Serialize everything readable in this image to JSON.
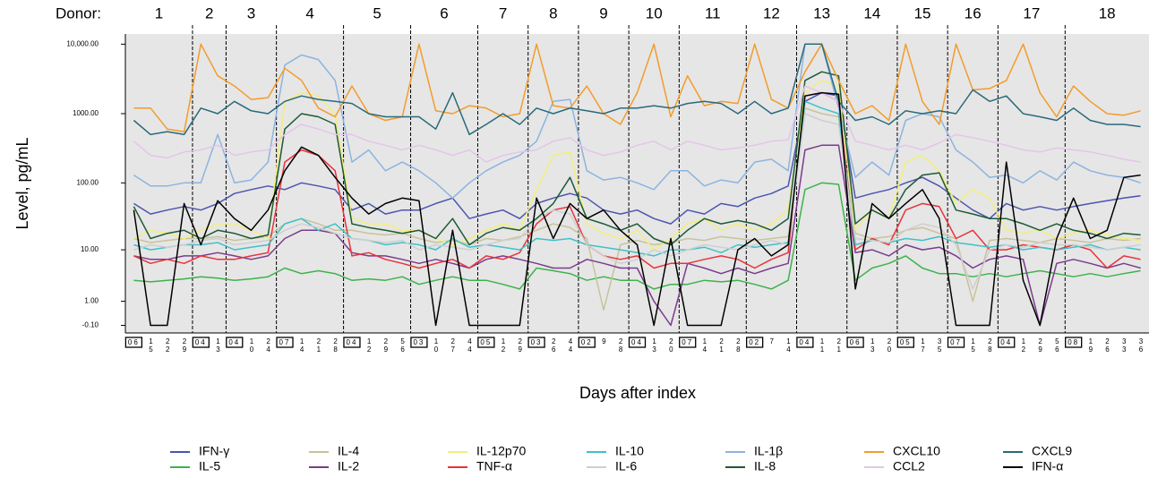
{
  "chart_data": {
    "type": "line",
    "group_label": "Donor:",
    "y_label": "Level, pg/mL",
    "x_label": "Days after index",
    "yscale": "log",
    "ylim": [
      -0.3,
      14000
    ],
    "yticks": [
      {
        "value": -0.1,
        "label": "-0.10"
      },
      {
        "value": 1,
        "label": "1.00"
      },
      {
        "value": 10,
        "label": "10.00"
      },
      {
        "value": 100,
        "label": "100.00"
      },
      {
        "value": 1000,
        "label": "1000.00"
      },
      {
        "value": 10000,
        "label": "10,000.00"
      }
    ],
    "groups": [
      {
        "label": "1",
        "categories": [
          "06",
          "15",
          "22",
          "29"
        ]
      },
      {
        "label": "2",
        "categories": [
          "04",
          "13"
        ]
      },
      {
        "label": "3",
        "categories": [
          "04",
          "10",
          "24"
        ]
      },
      {
        "label": "4",
        "categories": [
          "07",
          "14",
          "21",
          "28"
        ]
      },
      {
        "label": "5",
        "categories": [
          "04",
          "12",
          "29",
          "56"
        ]
      },
      {
        "label": "6",
        "categories": [
          "03",
          "10",
          "27",
          "44"
        ]
      },
      {
        "label": "7",
        "categories": [
          "05",
          "12",
          "29"
        ]
      },
      {
        "label": "8",
        "categories": [
          "03",
          "26",
          "44"
        ]
      },
      {
        "label": "9",
        "categories": [
          "02",
          "9",
          "28"
        ]
      },
      {
        "label": "10",
        "categories": [
          "04",
          "13",
          "20"
        ]
      },
      {
        "label": "11",
        "categories": [
          "07",
          "14",
          "21",
          "28"
        ]
      },
      {
        "label": "12",
        "categories": [
          "02",
          "7",
          "14"
        ]
      },
      {
        "label": "13",
        "categories": [
          "04",
          "11",
          "21"
        ]
      },
      {
        "label": "14",
        "categories": [
          "06",
          "13",
          "20"
        ]
      },
      {
        "label": "15",
        "categories": [
          "05",
          "17",
          "35"
        ]
      },
      {
        "label": "16",
        "categories": [
          "07",
          "15",
          "28"
        ]
      },
      {
        "label": "17",
        "categories": [
          "04",
          "12",
          "29",
          "56"
        ]
      },
      {
        "label": "18",
        "categories": [
          "08",
          "19",
          "26",
          "33",
          "36"
        ]
      }
    ],
    "series": [
      {
        "name": "IFN-γ",
        "color": "#4a55b0",
        "values": [
          50,
          35,
          40,
          45,
          40,
          50,
          70,
          80,
          90,
          80,
          100,
          90,
          80,
          40,
          50,
          35,
          40,
          40,
          50,
          60,
          30,
          35,
          40,
          30,
          50,
          60,
          70,
          60,
          40,
          35,
          40,
          30,
          25,
          40,
          35,
          50,
          45,
          60,
          70,
          90,
          1500,
          2000,
          1800,
          60,
          70,
          80,
          100,
          120,
          90,
          60,
          40,
          30,
          50,
          40,
          45,
          40,
          45,
          50,
          55,
          60,
          65
        ]
      },
      {
        "name": "IL-5",
        "color": "#3cb34a",
        "values": [
          3,
          2.8,
          3,
          3.2,
          3.5,
          3.3,
          3,
          3.2,
          3.5,
          5,
          4,
          4.5,
          4,
          3,
          3.2,
          3,
          3.5,
          2.5,
          3,
          3.5,
          3,
          3,
          2.5,
          2,
          5,
          4.5,
          4,
          3,
          3.5,
          3,
          3,
          2,
          2.5,
          2.5,
          3,
          2.8,
          3,
          2.5,
          2,
          3,
          80,
          100,
          95,
          3,
          5,
          6,
          8,
          5,
          4,
          4,
          3.5,
          4,
          3.5,
          4,
          4.5,
          4,
          3.5,
          4,
          3.5,
          4,
          4.5
        ]
      },
      {
        "name": "IL-4",
        "color": "#c8c39a",
        "values": [
          15,
          13,
          14,
          15,
          15,
          16,
          14,
          15,
          16,
          25,
          30,
          25,
          20,
          20,
          18,
          17,
          18,
          15,
          13,
          14,
          12,
          15,
          14,
          16,
          20,
          25,
          22,
          15,
          0.5,
          12,
          14,
          12,
          13,
          15,
          14,
          16,
          15,
          14,
          15,
          16,
          1200,
          1000,
          900,
          18,
          15,
          16,
          20,
          22,
          18,
          15,
          1,
          14,
          15,
          14,
          13,
          15,
          14,
          13,
          15,
          14,
          15
        ]
      },
      {
        "name": "IL-2",
        "color": "#7b3b8c",
        "values": [
          8,
          7,
          7,
          8,
          8,
          9,
          8,
          7,
          8,
          15,
          20,
          20,
          18,
          9,
          8,
          8,
          7,
          6,
          7,
          6,
          5,
          7,
          8,
          7,
          6,
          5,
          5,
          7,
          6,
          5,
          5,
          1,
          -0.1,
          6,
          5,
          4,
          5,
          4,
          5,
          6,
          300,
          350,
          350,
          9,
          10,
          8,
          12,
          10,
          11,
          8,
          5,
          7,
          8,
          7,
          -0.1,
          6,
          7,
          6,
          5,
          6,
          5
        ]
      },
      {
        "name": "IL-12p70",
        "color": "#f2ef7a",
        "values": [
          15,
          20,
          18,
          15,
          20,
          25,
          25,
          20,
          15,
          1500,
          2000,
          1800,
          1000,
          30,
          25,
          25,
          20,
          20,
          15,
          12,
          15,
          20,
          25,
          20,
          80,
          250,
          280,
          25,
          18,
          15,
          20,
          10,
          15,
          25,
          30,
          20,
          25,
          20,
          25,
          40,
          2000,
          3000,
          2500,
          20,
          40,
          30,
          200,
          250,
          150,
          50,
          80,
          60,
          20,
          18,
          20,
          15,
          18,
          20,
          17,
          15,
          14
        ]
      },
      {
        "name": "TNF-α",
        "color": "#e8333a",
        "values": [
          8,
          6,
          7,
          6,
          8,
          7,
          7,
          8,
          9,
          200,
          300,
          250,
          150,
          8,
          9,
          7,
          6,
          5,
          6,
          7,
          5,
          8,
          7,
          9,
          25,
          40,
          45,
          12,
          8,
          7,
          8,
          5,
          6,
          6,
          7,
          8,
          7,
          5,
          7,
          9,
          1800,
          2000,
          1500,
          10,
          15,
          12,
          40,
          50,
          45,
          15,
          20,
          10,
          10,
          12,
          11,
          10,
          12,
          10,
          5,
          8,
          7
        ]
      },
      {
        "name": "IL-10",
        "color": "#3fc1c9",
        "values": [
          12,
          10,
          11,
          12,
          12,
          13,
          10,
          11,
          12,
          25,
          30,
          20,
          25,
          15,
          14,
          12,
          13,
          12,
          10,
          15,
          11,
          12,
          11,
          10,
          15,
          14,
          15,
          12,
          11,
          10,
          9,
          8,
          10,
          10,
          11,
          9,
          12,
          11,
          12,
          13,
          1500,
          1200,
          1000,
          12,
          14,
          13,
          15,
          14,
          16,
          13,
          12,
          11,
          12,
          10,
          11,
          10,
          11,
          12,
          10,
          11,
          10
        ]
      },
      {
        "name": "IL-6",
        "color": "#cfcfcf",
        "values": [
          10,
          12,
          11,
          12,
          14,
          15,
          12,
          13,
          14,
          20,
          25,
          22,
          18,
          15,
          14,
          13,
          14,
          10,
          12,
          11,
          10,
          12,
          14,
          15,
          30,
          40,
          35,
          12,
          8,
          6,
          7,
          10,
          8,
          10,
          12,
          11,
          10,
          12,
          14,
          12,
          1000,
          800,
          700,
          15,
          14,
          13,
          20,
          25,
          22,
          12,
          2,
          10,
          12,
          11,
          13,
          12,
          12,
          11,
          10,
          11,
          12
        ]
      },
      {
        "name": "IL-1β",
        "color": "#8cb4e0",
        "values": [
          130,
          90,
          90,
          100,
          100,
          500,
          100,
          110,
          200,
          5000,
          7000,
          6000,
          3000,
          200,
          300,
          150,
          200,
          150,
          100,
          60,
          100,
          150,
          200,
          250,
          400,
          1500,
          1600,
          150,
          110,
          120,
          100,
          80,
          150,
          150,
          90,
          110,
          100,
          200,
          220,
          150,
          10000,
          10000,
          1200,
          120,
          200,
          130,
          800,
          1000,
          900,
          300,
          200,
          120,
          130,
          100,
          150,
          110,
          200,
          150,
          130,
          120,
          100
        ]
      },
      {
        "name": "IL-8",
        "color": "#1d5a36",
        "values": [
          45,
          15,
          18,
          20,
          15,
          20,
          18,
          15,
          17,
          600,
          1000,
          900,
          700,
          25,
          22,
          20,
          18,
          20,
          15,
          30,
          12,
          18,
          22,
          20,
          30,
          50,
          120,
          30,
          25,
          20,
          25,
          15,
          12,
          20,
          30,
          25,
          28,
          25,
          20,
          30,
          3000,
          4000,
          3500,
          25,
          40,
          30,
          80,
          130,
          140,
          40,
          35,
          30,
          30,
          25,
          20,
          25,
          20,
          18,
          15,
          18,
          17
        ]
      },
      {
        "name": "CXCL10",
        "color": "#f39c2b",
        "values": [
          1200,
          1200,
          600,
          550,
          10000,
          3500,
          2500,
          1600,
          1700,
          4500,
          3000,
          1200,
          900,
          2500,
          1000,
          800,
          900,
          10000,
          1100,
          1000,
          1300,
          1200,
          900,
          1000,
          10000,
          1300,
          1200,
          2500,
          1000,
          700,
          2000,
          10000,
          900,
          3500,
          1300,
          1500,
          1400,
          10000,
          1600,
          1200,
          4000,
          10000,
          3000,
          1000,
          1300,
          800,
          10000,
          1500,
          700,
          10000,
          2200,
          2300,
          3000,
          10000,
          2000,
          900,
          2500,
          1500,
          1000,
          950,
          1100
        ]
      },
      {
        "name": "CCL2",
        "color": "#e4c5e8",
        "values": [
          400,
          250,
          230,
          280,
          300,
          350,
          250,
          280,
          300,
          500,
          700,
          600,
          500,
          500,
          400,
          350,
          300,
          350,
          300,
          250,
          300,
          200,
          250,
          280,
          300,
          400,
          450,
          300,
          250,
          280,
          350,
          400,
          300,
          400,
          350,
          300,
          320,
          350,
          400,
          420,
          2500,
          2000,
          1500,
          400,
          350,
          300,
          350,
          300,
          380,
          500,
          450,
          400,
          350,
          300,
          280,
          320,
          300,
          280,
          250,
          220,
          200
        ]
      },
      {
        "name": "CXCL9",
        "color": "#2a6a7a",
        "values": [
          800,
          500,
          550,
          500,
          1200,
          1000,
          1500,
          1100,
          1000,
          1500,
          1800,
          1600,
          1500,
          1400,
          1000,
          900,
          900,
          900,
          600,
          2000,
          500,
          700,
          1000,
          700,
          1200,
          1000,
          1200,
          1100,
          1000,
          1200,
          1200,
          1300,
          1200,
          1400,
          1500,
          1400,
          1000,
          1500,
          1000,
          1200,
          10000,
          10000,
          1500,
          800,
          900,
          700,
          1100,
          1000,
          1100,
          1000,
          2200,
          1500,
          1800,
          1000,
          900,
          800,
          1200,
          800,
          700,
          700,
          650
        ]
      },
      {
        "name": "IFN-α",
        "color": "#000000",
        "values": [
          40,
          -0.1,
          -0.1,
          50,
          12,
          55,
          30,
          20,
          40,
          150,
          330,
          250,
          120,
          60,
          35,
          50,
          60,
          55,
          -0.1,
          20,
          -0.1,
          -0.1,
          -0.1,
          -0.1,
          60,
          15,
          50,
          30,
          40,
          20,
          12,
          -0.1,
          15,
          -0.1,
          -0.1,
          -0.1,
          10,
          15,
          8,
          12,
          1800,
          2000,
          1900,
          2,
          50,
          30,
          50,
          80,
          30,
          -0.1,
          -0.1,
          -0.1,
          200,
          3,
          -0.1,
          15,
          60,
          15,
          20,
          120,
          130
        ]
      }
    ]
  }
}
